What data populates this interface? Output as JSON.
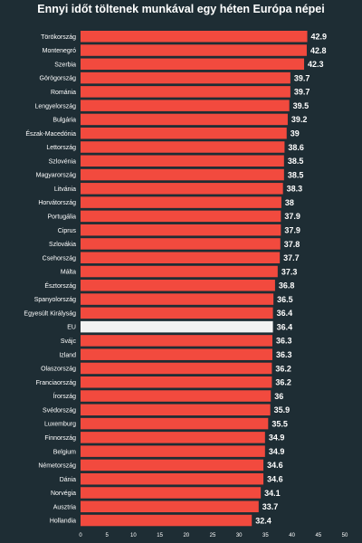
{
  "chart_data": {
    "type": "bar",
    "orientation": "horizontal",
    "title": "Ennyi időt töltenek munkával egy héten Európa népei",
    "categories": [
      "Törökország",
      "Montenegró",
      "Szerbia",
      "Görögország",
      "Románia",
      "Lengyelország",
      "Bulgária",
      "Észak-Macedónia",
      "Lettország",
      "Szlovénia",
      "Magyarország",
      "Litvánia",
      "Horvátország",
      "Portugália",
      "Ciprus",
      "Szlovákia",
      "Csehország",
      "Málta",
      "Észtország",
      "Spanyolország",
      "Egyesült Királyság",
      "EU",
      "Svájc",
      "Izland",
      "Olaszország",
      "Franciaország",
      "Írország",
      "Svédország",
      "Luxemburg",
      "Finnország",
      "Belgium",
      "Németország",
      "Dánia",
      "Norvégia",
      "Ausztria",
      "Hollandia"
    ],
    "values": [
      42.9,
      42.8,
      42.3,
      39.7,
      39.7,
      39.5,
      39.2,
      39,
      38.6,
      38.5,
      38.5,
      38.3,
      38,
      37.9,
      37.9,
      37.8,
      37.7,
      37.3,
      36.8,
      36.5,
      36.4,
      36.4,
      36.3,
      36.3,
      36.2,
      36.2,
      36,
      35.9,
      35.5,
      34.9,
      34.9,
      34.6,
      34.6,
      34.1,
      33.7,
      32.4
    ],
    "value_labels": [
      "42.9",
      "42.8",
      "42.3",
      "39.7",
      "39.7",
      "39.5",
      "39.2",
      "39",
      "38.6",
      "38.5",
      "38.5",
      "38.3",
      "38",
      "37.9",
      "37.9",
      "37.8",
      "37.7",
      "37.3",
      "36.8",
      "36.5",
      "36.4",
      "36.4",
      "36.3",
      "36.3",
      "36.2",
      "36.2",
      "36",
      "35.9",
      "35.5",
      "34.9",
      "34.9",
      "34.6",
      "34.6",
      "34.1",
      "33.7",
      "32.4"
    ],
    "highlight": "EU",
    "xlim": [
      0,
      50
    ],
    "xticks": [
      0,
      5,
      10,
      15,
      20,
      25,
      30,
      35,
      40,
      45,
      50
    ],
    "grid": false,
    "colors": {
      "background": "#1e2d34",
      "bar": "#f24a3e",
      "highlight_bar": "#f2f2f2",
      "text": "#ffffff"
    }
  }
}
